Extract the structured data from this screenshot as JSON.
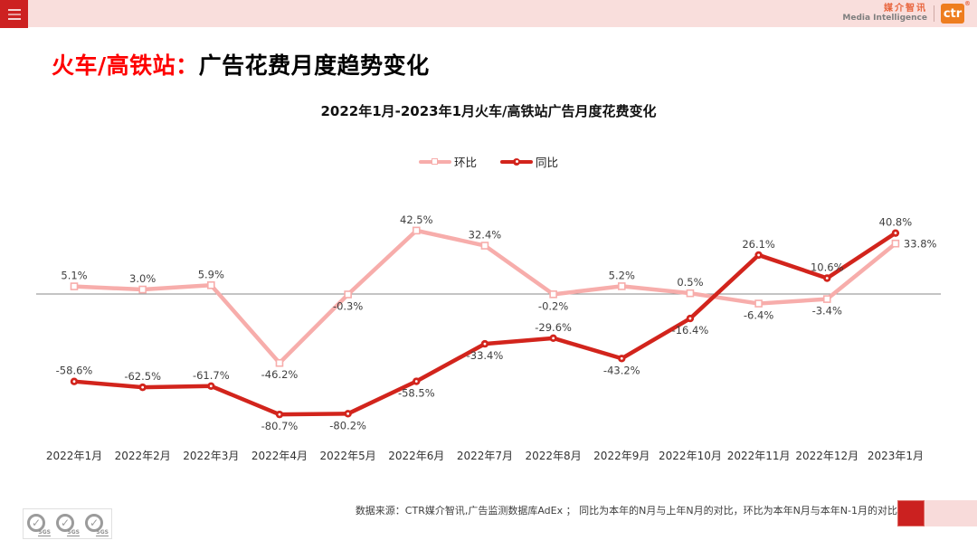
{
  "header": {
    "brand_cn": "媒介智讯",
    "brand_en": "Media Intelligence",
    "brand_mark": "ctr",
    "registered": "®"
  },
  "title": {
    "highlight": "火车/高铁站：",
    "rest": "广告花费月度趋势变化"
  },
  "chart_data": {
    "type": "line",
    "title": "2022年1月-2023年1月火车/高铁站广告月度花费变化",
    "categories": [
      "2022年1月",
      "2022年2月",
      "2022年3月",
      "2022年4月",
      "2022年5月",
      "2022年6月",
      "2022年7月",
      "2022年8月",
      "2022年9月",
      "2022年10月",
      "2022年11月",
      "2022年12月",
      "2023年1月"
    ],
    "series": [
      {
        "name": "环比",
        "color": "#F7ADAB",
        "marker": "square",
        "values": [
          5.1,
          3.0,
          5.9,
          -46.2,
          -0.3,
          42.5,
          32.4,
          -0.2,
          5.2,
          0.5,
          -6.4,
          -3.4,
          33.8
        ],
        "label_pos": [
          "above",
          "above",
          "above",
          "below",
          "below",
          "above",
          "above",
          "below",
          "above",
          "above",
          "below",
          "below",
          "right"
        ]
      },
      {
        "name": "同比",
        "color": "#D2241C",
        "marker": "dot",
        "values": [
          -58.6,
          -62.5,
          -61.7,
          -80.7,
          -80.2,
          -58.5,
          -33.4,
          -29.6,
          -43.2,
          -16.4,
          26.1,
          10.6,
          40.8
        ],
        "label_pos": [
          "above",
          "above",
          "above",
          "below",
          "below",
          "below",
          "below",
          "above",
          "below",
          "below",
          "above",
          "above",
          "above"
        ]
      }
    ],
    "value_suffix": "%",
    "baseline": 0,
    "ylim": [
      -90,
      55
    ],
    "grid": "zero-line-only",
    "legend_position": "top-center",
    "label_color": "#404040",
    "axis_line_color": "#8a8a8a"
  },
  "footer": {
    "source_text": "数据来源：CTR媒介智讯,广告监测数据库AdEx ； 同比为本年的N月与上年N月的对比，环比为本年N月与本年N-1月的对比",
    "sgs_label": "SGS"
  }
}
